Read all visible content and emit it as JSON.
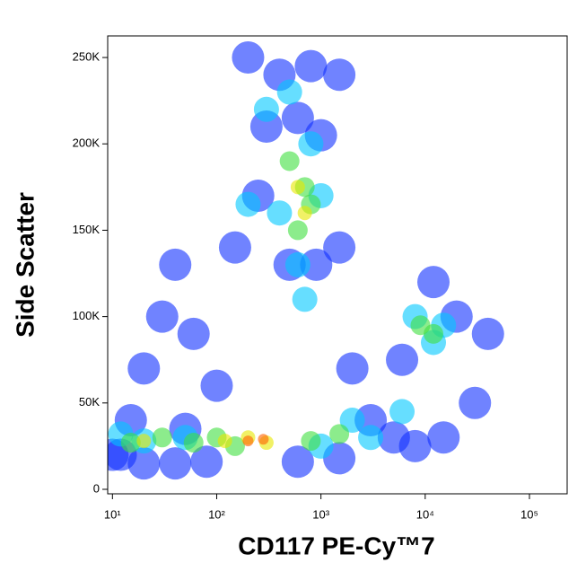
{
  "chart_data": {
    "type": "scatter",
    "xlabel": "CD117 PE-Cy™7",
    "ylabel": "Side Scatter",
    "xscale": "log",
    "xlim": [
      9,
      230000
    ],
    "ylim": [
      -2600,
      262500
    ],
    "xticks": [
      {
        "value": 10,
        "label": "10¹"
      },
      {
        "value": 100,
        "label": "10²"
      },
      {
        "value": 1000,
        "label": "10³"
      },
      {
        "value": 10000,
        "label": "10⁴"
      },
      {
        "value": 100000,
        "label": "10⁵"
      }
    ],
    "yticks": [
      0,
      {
        "value": 50000,
        "label": "50K"
      },
      {
        "value": 100000,
        "label": "100K"
      },
      {
        "value": 150000,
        "label": "150K"
      },
      {
        "value": 200000,
        "label": "200K"
      },
      {
        "value": 250000,
        "label": "250K"
      }
    ],
    "series": [
      {
        "color": "#1030ff",
        "x": [
          200,
          400,
          800,
          1500,
          300,
          600,
          1000,
          250,
          500,
          900,
          1500,
          150,
          60,
          30,
          20,
          40,
          2000,
          3000,
          5000,
          8000,
          15000,
          30000,
          20000,
          40000,
          12000,
          6000,
          15,
          12,
          100,
          50,
          10,
          20,
          40,
          80,
          600,
          1500
        ],
        "y": [
          250000,
          240000,
          245000,
          240000,
          210000,
          215000,
          205000,
          170000,
          130000,
          130000,
          140000,
          140000,
          90000,
          100000,
          70000,
          130000,
          70000,
          40000,
          30000,
          25000,
          30000,
          50000,
          100000,
          90000,
          120000,
          75000,
          40000,
          20000,
          60000,
          35000,
          20000,
          15000,
          15000,
          16000,
          16000,
          18000
        ]
      },
      {
        "color": "#00c8ff",
        "x": [
          300,
          500,
          800,
          1000,
          400,
          600,
          700,
          200,
          50,
          20,
          12,
          1000,
          2000,
          8000,
          12000,
          15000,
          6000,
          3000
        ],
        "y": [
          220000,
          230000,
          200000,
          170000,
          160000,
          130000,
          110000,
          165000,
          30000,
          28000,
          32000,
          25000,
          40000,
          100000,
          85000,
          95000,
          45000,
          30000
        ]
      },
      {
        "color": "#40e040",
        "x": [
          500,
          700,
          600,
          800,
          15,
          30,
          60,
          100,
          150,
          800,
          9000,
          12000,
          1500
        ],
        "y": [
          190000,
          175000,
          150000,
          165000,
          27000,
          30000,
          27000,
          30000,
          25000,
          28000,
          95000,
          90000,
          32000
        ]
      },
      {
        "color": "#e8e800",
        "x": [
          600,
          700,
          120,
          200,
          300,
          20
        ],
        "y": [
          175000,
          160000,
          28000,
          30000,
          27000,
          28000
        ]
      },
      {
        "color": "#ff6000",
        "x": [
          200,
          280
        ],
        "y": [
          28000,
          29000
        ]
      }
    ]
  }
}
